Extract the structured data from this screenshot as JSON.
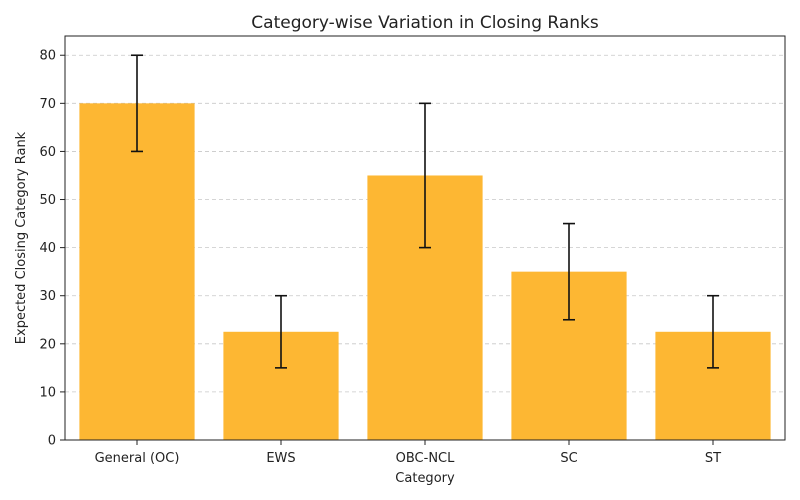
{
  "chart_data": {
    "type": "bar",
    "title": "Category-wise Variation in Closing Ranks",
    "xlabel": "Category",
    "ylabel": "Expected Closing Category Rank",
    "categories": [
      "General (OC)",
      "EWS",
      "OBC-NCL",
      "SC",
      "ST"
    ],
    "values": [
      70,
      22.5,
      55,
      35,
      22.5
    ],
    "error_low": [
      60,
      15,
      40,
      25,
      15
    ],
    "error_high": [
      80,
      30,
      70,
      45,
      30
    ],
    "ylim": [
      0,
      84
    ],
    "yticks": [
      0,
      10,
      20,
      30,
      40,
      50,
      60,
      70,
      80
    ],
    "grid": true,
    "bar_color": "#FDB733",
    "error_bar_color": "#111111"
  }
}
